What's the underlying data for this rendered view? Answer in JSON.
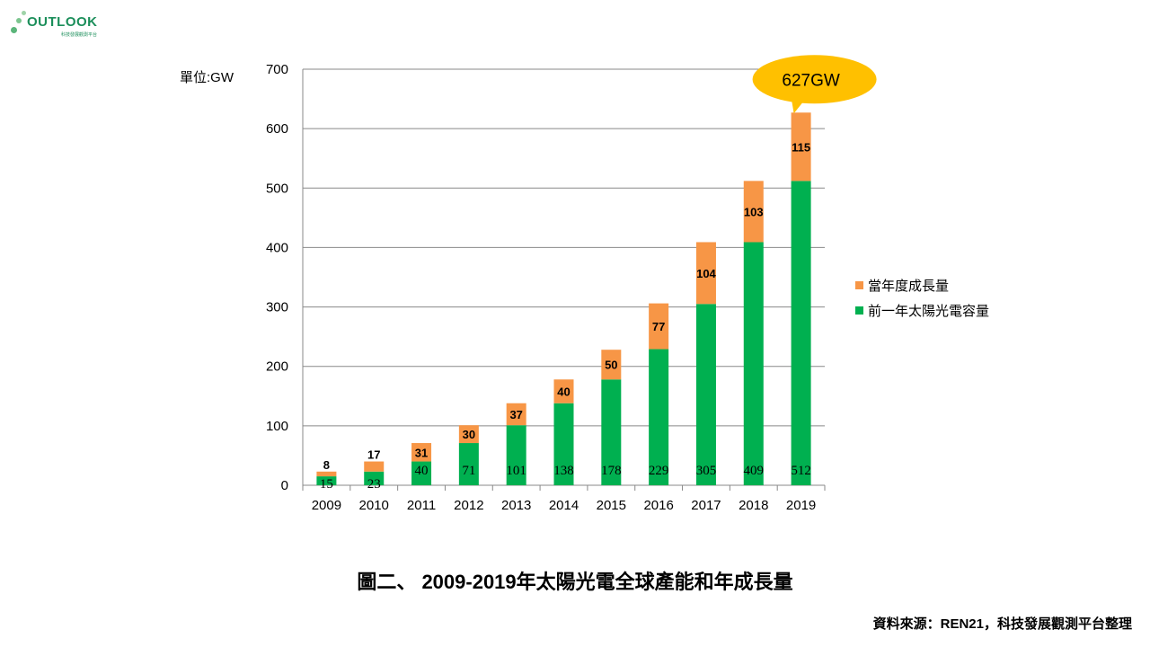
{
  "logo": {
    "brand": "OUTLOOK",
    "subtitle": "科技發展觀測平台"
  },
  "colors": {
    "green": "#00b050",
    "orange": "#f79646",
    "callout": "#ffc000",
    "grid": "#898989"
  },
  "chart_data": {
    "type": "bar",
    "stacked": true,
    "unit_label": "單位:GW",
    "categories": [
      "2009",
      "2010",
      "2011",
      "2012",
      "2013",
      "2014",
      "2015",
      "2016",
      "2017",
      "2018",
      "2019"
    ],
    "series": [
      {
        "name": "前一年太陽光電容量",
        "color": "#00b050",
        "values": [
          15,
          23,
          40,
          71,
          101,
          138,
          178,
          229,
          305,
          409,
          512
        ]
      },
      {
        "name": "當年度成長量",
        "color": "#f79646",
        "values": [
          8,
          17,
          31,
          30,
          37,
          40,
          50,
          77,
          104,
          103,
          115
        ]
      }
    ],
    "ylim": [
      0,
      700
    ],
    "yticks": [
      0,
      100,
      200,
      300,
      400,
      500,
      600,
      700
    ],
    "grid": true,
    "legend_position": "right",
    "annotation": {
      "text": "627GW",
      "target_category": "2019"
    }
  },
  "caption": "圖二、 2009-2019年太陽光電全球產能和年成長量",
  "source": "資料來源：REN21，科技發展觀測平台整理"
}
